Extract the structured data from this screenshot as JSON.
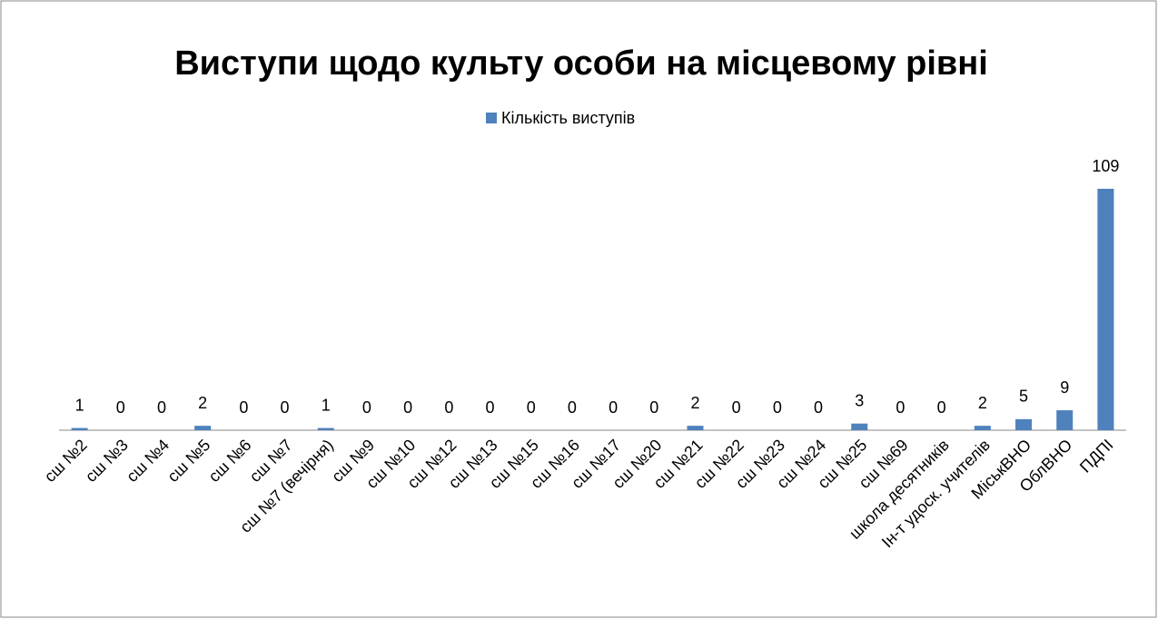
{
  "chart_data": {
    "type": "bar",
    "title": "Виступи щодо культу особи на місцевому рівні",
    "categories": [
      "сш №2",
      "сш №3",
      "сш №4",
      "сш №5",
      "сш №6",
      "сш №7",
      "сш №7 (вечірня)",
      "сш №9",
      "сш №10",
      "сш №12",
      "сш №13",
      "сш №15",
      "сш №16",
      "сш №17",
      "сш №20",
      "сш №21",
      "сш №22",
      "сш №23",
      "сш №24",
      "сш №25",
      "сш №69",
      "школа десятників",
      "Ін-т удоск. учителів",
      "МіськВНО",
      "ОблВНО",
      "ПДПІ"
    ],
    "series": [
      {
        "name": "Кількість виступів",
        "color": "#4f81bd",
        "values": [
          1,
          0,
          0,
          2,
          0,
          0,
          1,
          0,
          0,
          0,
          0,
          0,
          0,
          0,
          0,
          2,
          0,
          0,
          0,
          3,
          0,
          0,
          2,
          5,
          9,
          109
        ]
      }
    ],
    "legend": "top"
  }
}
